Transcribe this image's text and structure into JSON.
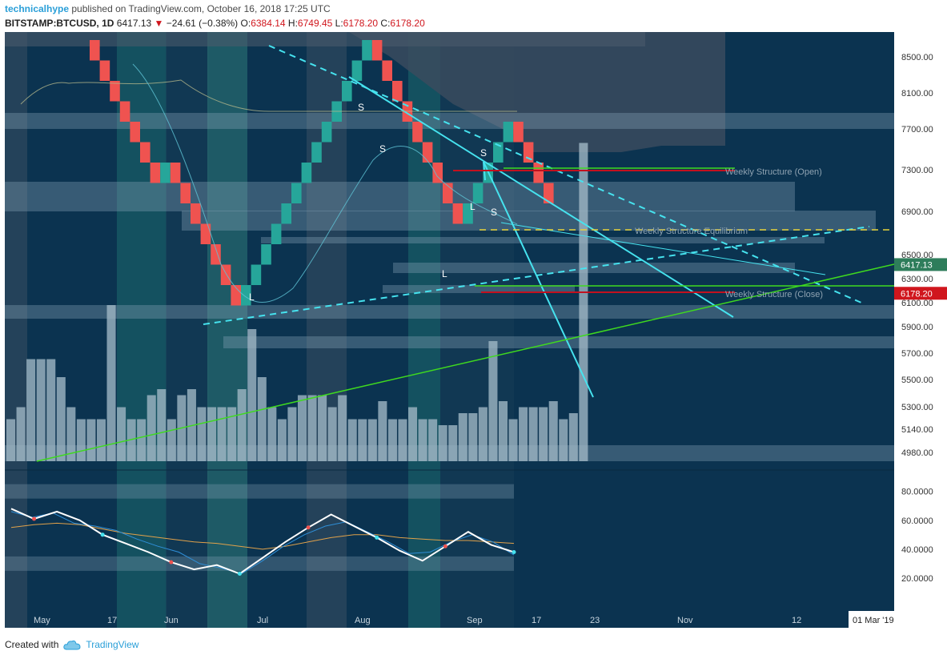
{
  "header": {
    "publisher": "technicalhype",
    "published_text": "published on TradingView.com, October 16, 2018 17:25 UTC",
    "symbol": "BITSTAMP:BTCUSD, 1D",
    "last": "6417.13",
    "change_arrow": "▼",
    "change": "−24.61 (−0.38%)",
    "open_label": "O:",
    "open": "6384.14",
    "high_label": "H:",
    "high": "6749.45",
    "low_label": "L:",
    "low": "6178.20",
    "close_label": "C:",
    "close": "6178.20"
  },
  "footer": {
    "created_with": "Created with",
    "brand": "TradingView",
    "brand_icon": "cloud-icon"
  },
  "colors": {
    "background": "#0b3350",
    "up": "#26a69a",
    "down": "#ef5350",
    "trendline": "#46e3ef",
    "support": "#3fd91f",
    "resistance": "#c2111f"
  },
  "chart_data": {
    "type": "renko",
    "brick_size": 200,
    "price_axis": {
      "ticks": [
        "8500.00",
        "8100.00",
        "7700.00",
        "7300.00",
        "6900.00",
        "6500.00",
        "6300.00",
        "6100.00",
        "5900.00",
        "5700.00",
        "5500.00",
        "5300.00",
        "5140.00",
        "4980.00"
      ],
      "last_price_label": "6417.13",
      "close_price_label": "6178.20"
    },
    "time_axis": {
      "labels": [
        "May",
        "17",
        "Jun",
        "Jul",
        "Aug",
        "Sep",
        "17",
        "23",
        "Nov",
        "12"
      ],
      "cursor_label": "01 Mar '19"
    },
    "bricks": [
      "down",
      "down",
      "down",
      "down",
      "down",
      "down",
      "down",
      "up",
      "down",
      "down",
      "down",
      "down",
      "down",
      "down",
      "down",
      "up",
      "up",
      "up",
      "up",
      "up",
      "up",
      "up",
      "up",
      "up",
      "up",
      "up",
      "up",
      "up",
      "down",
      "down",
      "down",
      "down",
      "down",
      "down",
      "down",
      "down",
      "down",
      "up",
      "up",
      "up",
      "up",
      "up",
      "down",
      "down",
      "down",
      "down"
    ],
    "markers": [
      "L",
      "S",
      "S",
      "L",
      "L",
      "S",
      "S"
    ],
    "annotations": [
      "Weekly Structure (Open)",
      "Weekly Structure Equilibrium",
      "Weekly Structure (Close)"
    ],
    "volume": [
      7,
      9,
      17,
      17,
      17,
      14,
      9,
      7,
      7,
      7,
      26,
      9,
      7,
      7,
      11,
      12,
      7,
      11,
      12,
      9,
      9,
      9,
      9,
      12,
      22,
      14,
      9,
      7,
      9,
      11,
      11,
      11,
      9,
      11,
      7,
      7,
      7,
      10,
      7,
      7,
      9,
      7,
      7,
      6,
      6,
      8,
      8,
      9,
      20,
      10,
      7,
      9,
      9,
      9,
      10,
      7,
      8,
      53
    ],
    "oscillator": {
      "ticks": [
        "80.0000",
        "60.0000",
        "40.0000",
        "20.0000"
      ],
      "ylim": [
        10,
        92
      ],
      "main_line": [
        68,
        61,
        66,
        60,
        50,
        44,
        38,
        31,
        26,
        29,
        23,
        34,
        45,
        55,
        64,
        56,
        48,
        39,
        32,
        42,
        52,
        43,
        38
      ],
      "fast_line": [
        66,
        62,
        65,
        58,
        56,
        53,
        47,
        42,
        38,
        30,
        27,
        23,
        32,
        42,
        50,
        56,
        59,
        52,
        45,
        37,
        38,
        45,
        50,
        45,
        36
      ],
      "signal_line": [
        55,
        57,
        58,
        57,
        54,
        51,
        49,
        47,
        45,
        44,
        42,
        40,
        42,
        45,
        48,
        50,
        50,
        48,
        47,
        46,
        46,
        45,
        44
      ]
    }
  }
}
